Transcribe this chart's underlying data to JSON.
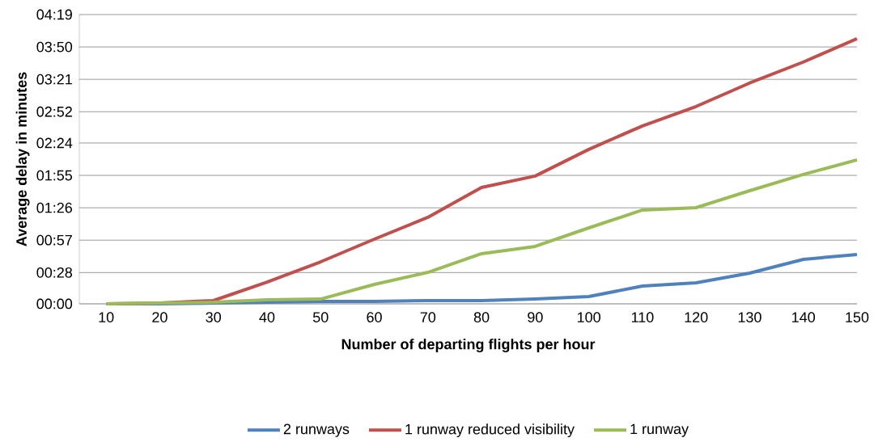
{
  "chart_data": {
    "type": "line",
    "xlabel": "Number of departing flights per hour",
    "ylabel": "Average delay in minutes",
    "categories": [
      "10",
      "20",
      "30",
      "40",
      "50",
      "60",
      "70",
      "80",
      "90",
      "100",
      "110",
      "120",
      "130",
      "140",
      "150"
    ],
    "series": [
      {
        "name": "2 runways",
        "color": "#4f81bd",
        "values": [
          0,
          0,
          0.7,
          1.4,
          2.2,
          2.2,
          2.9,
          2.9,
          4.3,
          6.5,
          15.9,
          18.8,
          27.5,
          39.8,
          44.2
        ]
      },
      {
        "name": "1 runway reduced visibility",
        "color": "#c0504d",
        "values": [
          0,
          0.7,
          2.9,
          19.5,
          37.6,
          57.9,
          77.5,
          104.2,
          114.4,
          138.3,
          159.3,
          176.7,
          197.7,
          216.5,
          237.4
        ]
      },
      {
        "name": "1 runway",
        "color": "#9bbb59",
        "values": [
          0,
          0.7,
          1.4,
          3.6,
          4.3,
          17.4,
          28.2,
          44.9,
          51.4,
          68.0,
          84.0,
          86.1,
          101.3,
          115.8,
          128.9
        ]
      }
    ],
    "ylim": [
      0,
      259
    ],
    "yticks": [
      {
        "value": 0,
        "label": "00:00"
      },
      {
        "value": 28,
        "label": "00:28"
      },
      {
        "value": 57,
        "label": "00:57"
      },
      {
        "value": 86,
        "label": "01:26"
      },
      {
        "value": 115,
        "label": "01:55"
      },
      {
        "value": 144,
        "label": "02:24"
      },
      {
        "value": 172,
        "label": "02:52"
      },
      {
        "value": 201,
        "label": "03:21"
      },
      {
        "value": 230,
        "label": "03:50"
      },
      {
        "value": 259,
        "label": "04:19"
      }
    ],
    "grid": "y",
    "legend": "bottom",
    "marker": "none",
    "line_style": "solid"
  }
}
